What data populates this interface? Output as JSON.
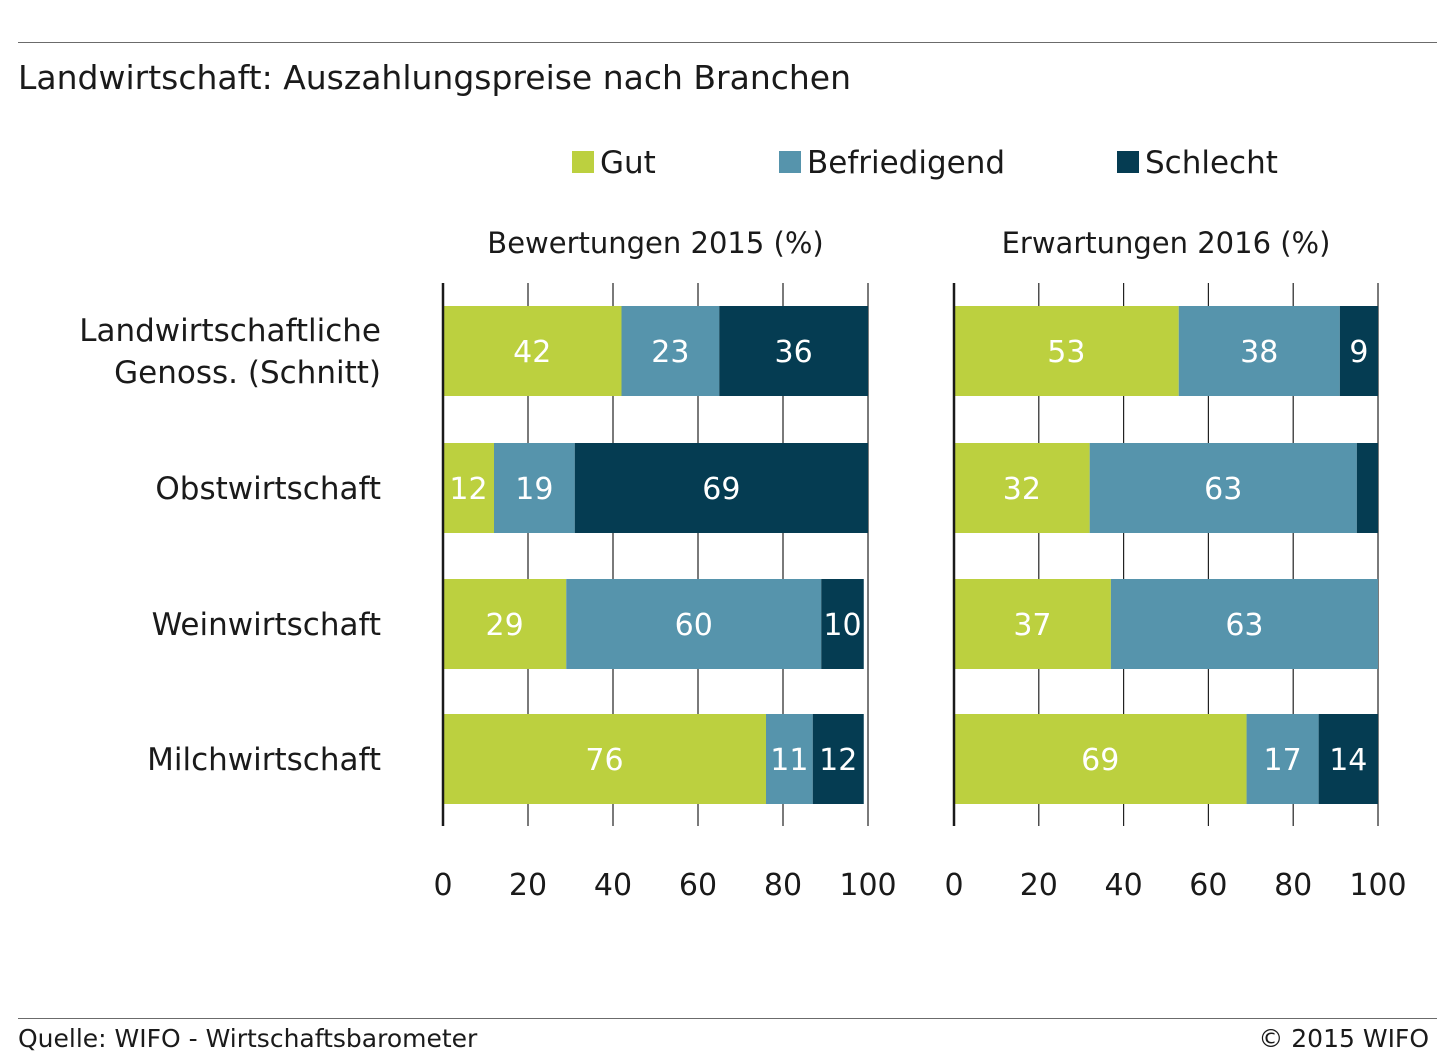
{
  "title": "Landwirtschaft: Auszahlungspreise nach Branchen",
  "footer": {
    "source": "Quelle: WIFO - Wirtschaftsbarometer",
    "copyright": "© 2015 WIFO"
  },
  "colors": {
    "Gut": "#bcd03f",
    "Befriedigend": "#5694ac",
    "Schlecht": "#053c52",
    "label_text": "#ffffff",
    "axis": "#1a1a1a",
    "grid": "#222222"
  },
  "chart_data": {
    "type": "bar",
    "orientation": "horizontal",
    "stacked": true,
    "legend": {
      "placement": "top",
      "entries": [
        "Gut",
        "Befriedigend",
        "Schlecht"
      ]
    },
    "categories": [
      [
        "Landwirtschaftliche",
        "Genoss. (Schnitt)"
      ],
      [
        "Obstwirtschaft"
      ],
      [
        "Weinwirtschaft"
      ],
      [
        "Milchwirtschaft"
      ]
    ],
    "xlim": [
      0,
      100
    ],
    "xticks": [
      0,
      20,
      40,
      60,
      80,
      100
    ],
    "panels": [
      {
        "title": "Bewertungen 2015 (%)",
        "series": [
          {
            "name": "Gut",
            "values": [
              42,
              12,
              29,
              76
            ],
            "labels": [
              "42",
              "12",
              "29",
              "76"
            ]
          },
          {
            "name": "Befriedigend",
            "values": [
              23,
              19,
              60,
              11
            ],
            "labels": [
              "23",
              "19",
              "60",
              "11"
            ]
          },
          {
            "name": "Schlecht",
            "values": [
              36,
              69,
              10,
              12
            ],
            "labels": [
              "36",
              "69",
              "10",
              "12"
            ]
          }
        ]
      },
      {
        "title": "Erwartungen 2016 (%)",
        "series": [
          {
            "name": "Gut",
            "values": [
              53,
              32,
              37,
              69
            ],
            "labels": [
              "53",
              "32",
              "37",
              "69"
            ]
          },
          {
            "name": "Befriedigend",
            "values": [
              38,
              63,
              63,
              17
            ],
            "labels": [
              "38",
              "63",
              "63",
              "17"
            ]
          },
          {
            "name": "Schlecht",
            "values": [
              9,
              5,
              0,
              14
            ],
            "labels": [
              "9",
              "",
              "",
              "14"
            ]
          }
        ]
      }
    ]
  }
}
